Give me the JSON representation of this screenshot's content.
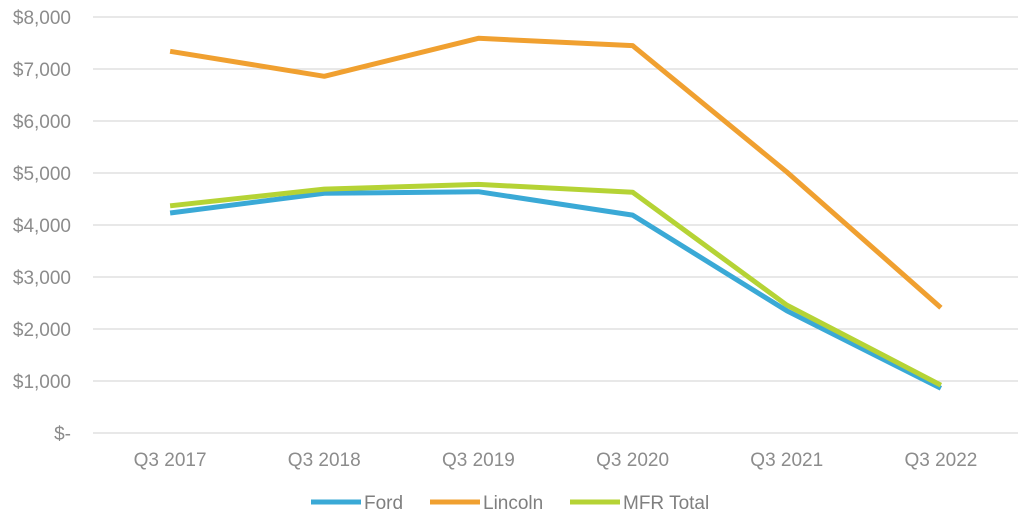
{
  "chart_data": {
    "type": "line",
    "title": "",
    "xlabel": "",
    "ylabel": "",
    "categories": [
      "Q3 2017",
      "Q3 2018",
      "Q3 2019",
      "Q3 2020",
      "Q3 2021",
      "Q3 2022"
    ],
    "ylim": [
      0,
      8000
    ],
    "yticks": [
      0,
      1000,
      2000,
      3000,
      4000,
      5000,
      6000,
      7000,
      8000
    ],
    "ytick_labels": [
      "$-",
      "$1,000",
      "$2,000",
      "$3,000",
      "$4,000",
      "$5,000",
      "$6,000",
      "$7,000",
      "$8,000"
    ],
    "grid": true,
    "legend_position": "bottom",
    "series": [
      {
        "name": "Ford",
        "color": "#3aa9d6",
        "values": [
          4230,
          4610,
          4640,
          4190,
          2350,
          860
        ]
      },
      {
        "name": "Lincoln",
        "color": "#f0a030",
        "values": [
          7340,
          6860,
          7590,
          7450,
          5020,
          2410
        ]
      },
      {
        "name": "MFR Total",
        "color": "#b5d335",
        "values": [
          4370,
          4690,
          4780,
          4630,
          2460,
          920
        ]
      }
    ]
  }
}
